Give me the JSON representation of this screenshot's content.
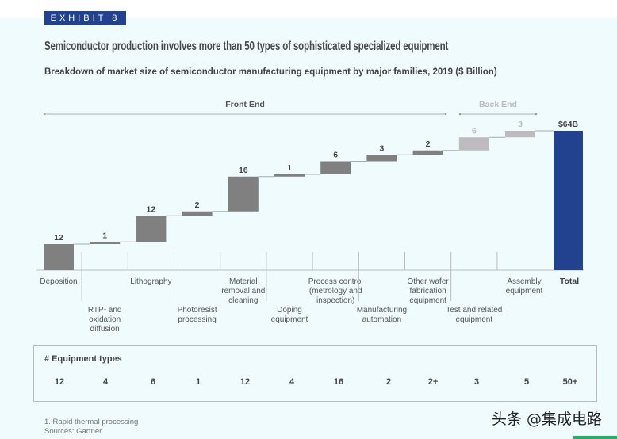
{
  "exhibit_label": "EXHIBIT 8",
  "title": "Semiconductor production involves more than 50 types of sophisticated specialized equipment",
  "subtitle": "Breakdown of market size of semiconductor manufacturing equipment by major families, 2019 ($ Billion)",
  "colors": {
    "front_end": "#808080",
    "back_end": "#bdbbbd",
    "total": "#22428f",
    "badge": "#22428f",
    "background": "#f0fbfd"
  },
  "chart_data": {
    "type": "waterfall",
    "title": "Breakdown of market size of semiconductor manufacturing equipment by major families, 2019 ($ Billion)",
    "groups": [
      {
        "name": "Front End",
        "from": 0,
        "to": 8
      },
      {
        "name": "Back End",
        "from": 9,
        "to": 10
      }
    ],
    "categories": [
      "Deposition",
      "RTP¹ and oxidation diffusion",
      "Lithography",
      "Photoresist processing",
      "Material removal and cleaning",
      "Doping equipment",
      "Process control (metrology and inspection)",
      "Manufacturing automation",
      "Other wafer fabrication equipment",
      "Test and related equipment",
      "Assembly equipment"
    ],
    "category_lines": [
      [
        "Deposition"
      ],
      [
        "RTP¹ and",
        "oxidation",
        "diffusion"
      ],
      [
        "Lithography"
      ],
      [
        "Photoresist",
        "processing"
      ],
      [
        "Material",
        "removal and",
        "cleaning"
      ],
      [
        "Doping",
        "equipment"
      ],
      [
        "Process control",
        "(metrology and",
        "inspection)"
      ],
      [
        "Manufacturing",
        "automation"
      ],
      [
        "Other wafer",
        "fabrication",
        "equipment"
      ],
      [
        "Test and related",
        "equipment"
      ],
      [
        "Assembly",
        "equipment"
      ]
    ],
    "segment": [
      "front",
      "front",
      "front",
      "front",
      "front",
      "front",
      "front",
      "front",
      "front",
      "back",
      "back"
    ],
    "values": [
      12,
      1,
      12,
      2,
      16,
      1,
      6,
      3,
      2,
      6,
      3
    ],
    "value_labels": [
      "12",
      "1",
      "12",
      "2",
      "16",
      "1",
      "6",
      "3",
      "2",
      "6",
      "3"
    ],
    "total": {
      "label": "Total",
      "value": 64,
      "value_label": "$64B"
    },
    "ylim": [
      0,
      64
    ],
    "xlabel": "",
    "ylabel": ""
  },
  "equipment_types": {
    "title": "# Equipment types",
    "values": [
      "12",
      "4",
      "6",
      "1",
      "12",
      "4",
      "16",
      "2",
      "2+",
      "3",
      "5",
      "50+"
    ]
  },
  "footnotes": [
    "1. Rapid thermal processing",
    "Sources: Gartner"
  ],
  "watermark": "头条 @集成电路"
}
